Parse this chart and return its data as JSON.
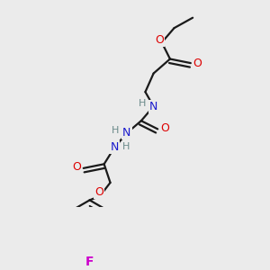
{
  "background_color": "#ebebeb",
  "atom_colors": {
    "C": "#1a1a1a",
    "H": "#6a8a8a",
    "N": "#1a1acd",
    "O": "#dd0000",
    "F": "#cc00cc"
  },
  "bond_color": "#1a1a1a",
  "bond_width": 1.6,
  "fig_width": 3.0,
  "fig_height": 3.0,
  "dpi": 100,
  "xlim": [
    0,
    10
  ],
  "ylim": [
    0,
    10
  ]
}
